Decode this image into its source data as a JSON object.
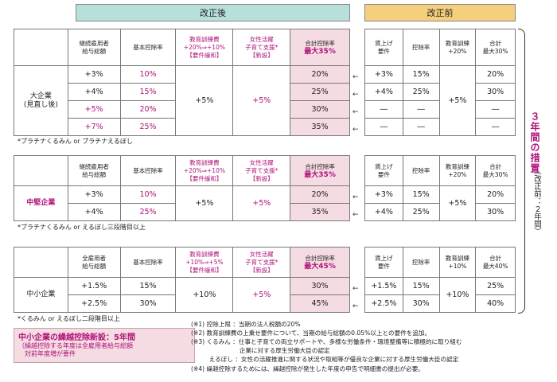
{
  "headers": {
    "after": "改正後",
    "before": "改正前"
  },
  "after_cols": {
    "wage_all": [
      "継続雇用者",
      "給与総額"
    ],
    "wage_sme": [
      "全雇用者",
      "給与総額"
    ],
    "basic": "基本控除率",
    "edu_large": [
      "教育訓練費",
      "+20%⇒+10%",
      "【要件緩和】"
    ],
    "edu_sme": [
      "教育訓練費",
      "+10%⇒+5%",
      "【要件緩和】"
    ],
    "women": [
      "女性活躍",
      "子育て支援*",
      "【新設】"
    ],
    "sum": "合計控除率",
    "max_large": "最大35%",
    "max_mid": "最大35%",
    "max_sme": "最大45%"
  },
  "before_cols": {
    "wage": [
      "賃上げ",
      "要件"
    ],
    "rate": "控除率",
    "edu": [
      "教育訓練",
      "+20%"
    ],
    "edu_sme": [
      "教育訓練",
      "+10%"
    ],
    "total": [
      "合計",
      "最大30%"
    ],
    "total_sme": [
      "合計",
      "最大40%"
    ]
  },
  "large": {
    "label": [
      "大企業",
      "(見直し後)"
    ],
    "rows": [
      {
        "w": "+3%",
        "b": "10%",
        "s": "20%"
      },
      {
        "w": "+4%",
        "b": "15%",
        "s": "25%"
      },
      {
        "w": "+5%",
        "b": "20%",
        "s": "30%"
      },
      {
        "w": "+7%",
        "b": "25%",
        "s": "35%"
      }
    ],
    "edu": "+5%",
    "women": "+5%",
    "before": [
      {
        "w": "+3%",
        "r": "15%",
        "t": "20%"
      },
      {
        "w": "+4%",
        "r": "25%",
        "t": "30%"
      },
      {
        "w": "―",
        "r": "―",
        "t": "―"
      },
      {
        "w": "―",
        "r": "―",
        "t": "―"
      }
    ],
    "before_edu": "+5%",
    "note": "*プラチナくるみん or プラチナえるぼし"
  },
  "mid": {
    "label": "中堅企業",
    "rows": [
      {
        "w": "+3%",
        "b": "10%",
        "s": "20%"
      },
      {
        "w": "+4%",
        "b": "25%",
        "s": "35%"
      }
    ],
    "edu": "+5%",
    "women": "+5%",
    "before": [
      {
        "w": "+3%",
        "r": "15%",
        "t": "20%"
      },
      {
        "w": "+4%",
        "r": "25%",
        "t": "30%"
      }
    ],
    "before_edu": "+5%",
    "note": "*プラチナくるみん or えるぼし三段階目以上"
  },
  "sme": {
    "label": "中小企業",
    "rows": [
      {
        "w": "+1.5%",
        "b": "15%",
        "s": "30%"
      },
      {
        "w": "+2.5%",
        "b": "30%",
        "s": "45%"
      }
    ],
    "edu": "+10%",
    "women": "+5%",
    "before": [
      {
        "w": "+1.5%",
        "r": "15%",
        "t": "25%"
      },
      {
        "w": "+2.5%",
        "r": "30%",
        "t": "40%"
      }
    ],
    "before_edu": "+10%",
    "note": "*くるみん or えるぼし二段階目以上"
  },
  "side": {
    "main": "３年間の措置",
    "sub": "（改正前：２年間）"
  },
  "box": {
    "title": "中小企業の繰越控除新設：5年間",
    "body1": "（繰越控除する年度は全雇用者給与総額",
    "body2": "　対前年度増が要件"
  },
  "footnotes": [
    "(※1) 控除上限 ：当期の法人税額の20%",
    "(※2) 教育訓練費の上乗せ要件について、当期の給与総額の0.05%以上との要件を追加。",
    "(※3) くるみん ：仕事と子育ての両立サポートや、多様な労働条件・環境整備等に積極的に取り組む",
    "　　　　　　　　企業に対する厚生労働大臣の認定",
    "　　　えるぼし ：女性の活躍推進に関する状況や取組等が優良な企業に対する厚生労働大臣の認定",
    "(※4) 繰越控除するためには、繰越控除が発生した年度の申告で明細書の提出が必要。"
  ],
  "arrow": "←"
}
